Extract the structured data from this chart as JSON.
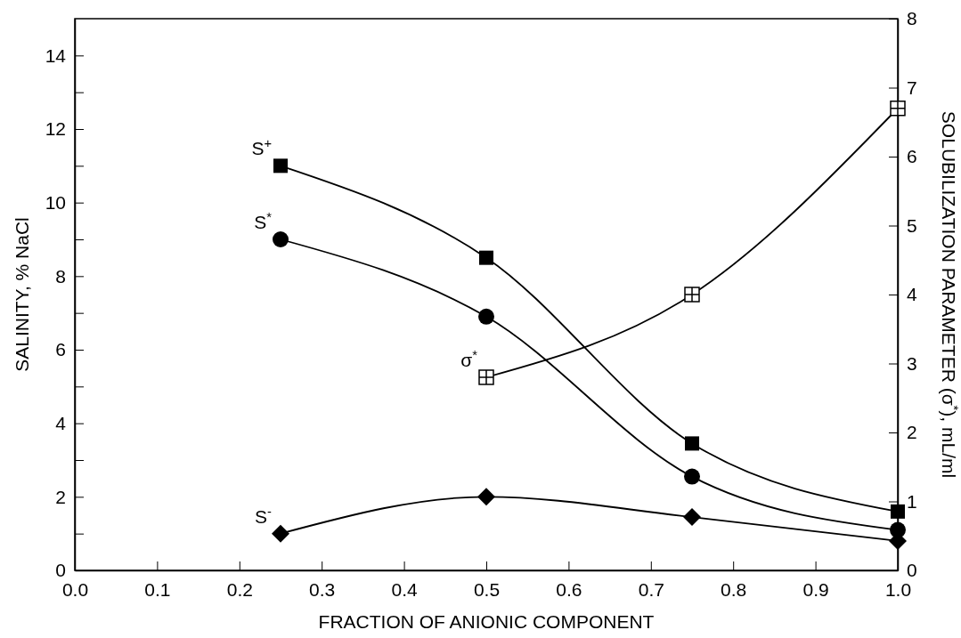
{
  "chart_data": {
    "type": "line",
    "xlabel": "FRACTION OF ANIONIC COMPONENT",
    "ylabel": "SALINITY, % NaCl",
    "y2label": "SOLUBILIZATION PARAMETER (σ$^{*}$), mL/ml",
    "x": [
      0.25,
      0.5,
      0.75,
      1.0
    ],
    "series": [
      {
        "name": "S$^{+}$",
        "color": "#000000",
        "marker": "square",
        "values": [
          11,
          8.5,
          3.45,
          1.6
        ]
      },
      {
        "name": "S$^{*}$",
        "color": "#000000",
        "marker": "circle",
        "values": [
          9,
          6.9,
          2.55,
          1.1
        ]
      },
      {
        "name": "S$^{-}$",
        "color": "#000000",
        "marker": "diamond",
        "values": [
          1,
          2,
          1.45,
          0.8
        ]
      },
      {
        "name": "σ$^{*}$",
        "color": "#000000",
        "marker": "cross",
        "axis": "y2",
        "x": [
          0.5,
          0.75,
          1.0
        ],
        "values": [
          2.8,
          4.0,
          6.7
        ]
      }
    ],
    "xlim": [
      0,
      1
    ],
    "xticks": [
      {
        "value": 0,
        "label": "0.0"
      },
      0.1,
      0.2,
      0.3,
      0.4,
      0.5,
      0.6,
      0.7,
      0.8,
      0.9,
      {
        "value": 1,
        "label": "1.0"
      }
    ],
    "ylim": [
      0,
      15
    ],
    "yticks": [
      0,
      {
        "value": 1,
        "label": null
      },
      2,
      {
        "value": 3,
        "label": null
      },
      4,
      {
        "value": 5,
        "label": null
      },
      6,
      {
        "value": 7,
        "label": null
      },
      8,
      {
        "value": 9,
        "label": null
      },
      10,
      {
        "value": 11,
        "label": null
      },
      12,
      {
        "value": 13,
        "label": null
      },
      14
    ],
    "y2lim": [
      0,
      8
    ],
    "y2ticks": [
      0,
      1,
      2,
      3,
      4,
      5,
      6,
      7,
      8
    ],
    "grid": false,
    "legend": false
  }
}
